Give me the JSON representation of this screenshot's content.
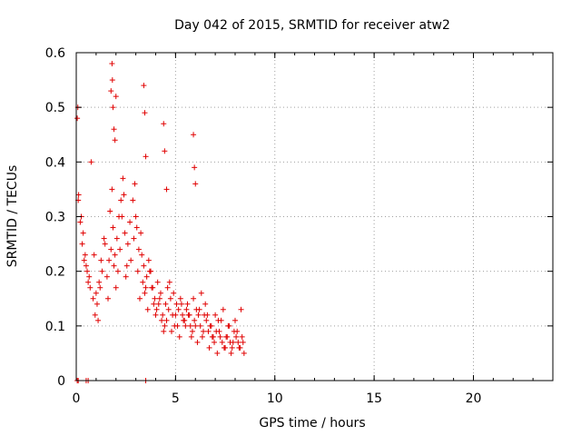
{
  "chart_data": {
    "type": "scatter",
    "title": "Day 042 of 2015, SRMTID for receiver atw2",
    "xlabel": "GPS time / hours",
    "ylabel": "SRMTID / TECUs",
    "xlim": [
      0,
      24
    ],
    "ylim": [
      0,
      0.6
    ],
    "xticks": [
      0,
      5,
      10,
      15,
      20
    ],
    "yticks": [
      0,
      0.1,
      0.2,
      0.3,
      0.4,
      0.5,
      0.6
    ],
    "x_tick_labels": [
      "0",
      "5",
      "10",
      "15",
      "20"
    ],
    "y_tick_labels": [
      "0",
      "0.1",
      "0.2",
      "0.3",
      "0.4",
      "0.5",
      "0.6"
    ],
    "grid": true,
    "marker": "plus",
    "color": "#e00000",
    "series": [
      {
        "name": "SRMTID",
        "x": [
          0.05,
          0.08,
          0.12,
          0.25,
          0.35,
          0.45,
          0.55,
          0.65,
          0.7,
          0.85,
          0.95,
          1.05,
          1.15,
          1.25,
          1.4,
          1.55,
          1.65,
          1.75,
          1.85,
          1.95,
          2.05,
          2.15,
          2.25,
          2.35,
          2.45,
          2.55,
          2.7,
          2.85,
          2.95,
          3.05,
          3.15,
          3.25,
          3.35,
          3.45,
          3.55,
          3.65,
          3.75,
          3.85,
          3.95,
          4.05,
          4.15,
          4.25,
          4.35,
          4.45,
          4.55,
          4.65,
          4.75,
          4.85,
          4.95,
          5.05,
          5.15,
          5.25,
          5.35,
          5.45,
          5.55,
          5.65,
          5.75,
          5.85,
          5.95,
          6.05,
          6.15,
          6.25,
          6.35,
          6.45,
          6.55,
          6.65,
          6.75,
          6.85,
          6.95,
          7.05,
          7.15,
          7.25,
          7.35,
          7.45,
          7.55,
          7.65,
          7.75,
          7.85,
          7.95,
          8.05,
          8.15,
          8.25,
          8.35,
          8.4,
          8.45,
          0.1,
          0.2,
          0.3,
          0.4,
          0.5,
          0.6,
          0.75,
          0.9,
          1.0,
          1.1,
          1.2,
          1.3,
          1.45,
          1.6,
          1.7,
          1.8,
          1.9,
          2.0,
          2.1,
          2.2,
          2.3,
          2.4,
          2.5,
          2.6,
          2.75,
          2.9,
          3.0,
          3.1,
          3.2,
          3.3,
          3.4,
          3.5,
          3.6,
          3.7,
          3.8,
          3.9,
          4.0,
          4.1,
          4.2,
          4.3,
          4.4,
          4.5,
          4.6,
          4.7,
          4.8,
          4.9,
          5.0,
          5.1,
          5.2,
          5.3,
          5.4,
          5.5,
          5.6,
          5.7,
          5.8,
          5.9,
          6.0,
          6.1,
          6.2,
          6.3,
          6.4,
          6.5,
          6.6,
          6.7,
          6.8,
          6.9,
          7.0,
          7.1,
          7.2,
          7.3,
          7.4,
          7.5,
          7.6,
          7.7,
          7.8,
          7.9,
          8.0,
          8.1,
          8.2,
          8.3,
          1.75,
          1.8,
          1.82,
          1.85,
          1.9,
          1.95,
          2.0,
          3.4,
          3.45,
          3.5,
          4.4,
          4.45,
          4.55,
          5.9,
          5.95,
          6.0,
          0.05,
          0.1,
          0.5,
          0.6,
          3.5
        ],
        "y": [
          0.48,
          0.5,
          0.34,
          0.3,
          0.27,
          0.23,
          0.2,
          0.19,
          0.17,
          0.15,
          0.12,
          0.14,
          0.18,
          0.22,
          0.26,
          0.19,
          0.22,
          0.24,
          0.28,
          0.23,
          0.26,
          0.3,
          0.33,
          0.37,
          0.27,
          0.21,
          0.29,
          0.33,
          0.36,
          0.28,
          0.24,
          0.27,
          0.18,
          0.16,
          0.19,
          0.22,
          0.2,
          0.17,
          0.15,
          0.13,
          0.14,
          0.16,
          0.12,
          0.1,
          0.11,
          0.13,
          0.15,
          0.12,
          0.1,
          0.14,
          0.13,
          0.15,
          0.12,
          0.11,
          0.13,
          0.12,
          0.1,
          0.09,
          0.11,
          0.13,
          0.12,
          0.1,
          0.08,
          0.12,
          0.11,
          0.09,
          0.1,
          0.08,
          0.07,
          0.09,
          0.11,
          0.08,
          0.07,
          0.06,
          0.08,
          0.1,
          0.07,
          0.06,
          0.09,
          0.08,
          0.07,
          0.06,
          0.08,
          0.07,
          0.05,
          0.33,
          0.29,
          0.25,
          0.22,
          0.21,
          0.18,
          0.4,
          0.23,
          0.16,
          0.11,
          0.17,
          0.2,
          0.25,
          0.15,
          0.31,
          0.35,
          0.21,
          0.17,
          0.2,
          0.24,
          0.3,
          0.34,
          0.19,
          0.25,
          0.22,
          0.26,
          0.3,
          0.2,
          0.15,
          0.23,
          0.21,
          0.17,
          0.13,
          0.2,
          0.17,
          0.14,
          0.12,
          0.18,
          0.15,
          0.11,
          0.09,
          0.14,
          0.17,
          0.18,
          0.09,
          0.16,
          0.12,
          0.1,
          0.08,
          0.14,
          0.11,
          0.1,
          0.14,
          0.12,
          0.08,
          0.15,
          0.1,
          0.07,
          0.13,
          0.16,
          0.09,
          0.14,
          0.12,
          0.06,
          0.1,
          0.08,
          0.12,
          0.05,
          0.09,
          0.11,
          0.13,
          0.06,
          0.08,
          0.1,
          0.05,
          0.07,
          0.11,
          0.09,
          0.06,
          0.13,
          0.53,
          0.58,
          0.55,
          0.5,
          0.46,
          0.44,
          0.52,
          0.54,
          0.49,
          0.41,
          0.47,
          0.42,
          0.35,
          0.45,
          0.39,
          0.36,
          0.0,
          0.0,
          0.0,
          0.0,
          0.0
        ]
      }
    ]
  }
}
